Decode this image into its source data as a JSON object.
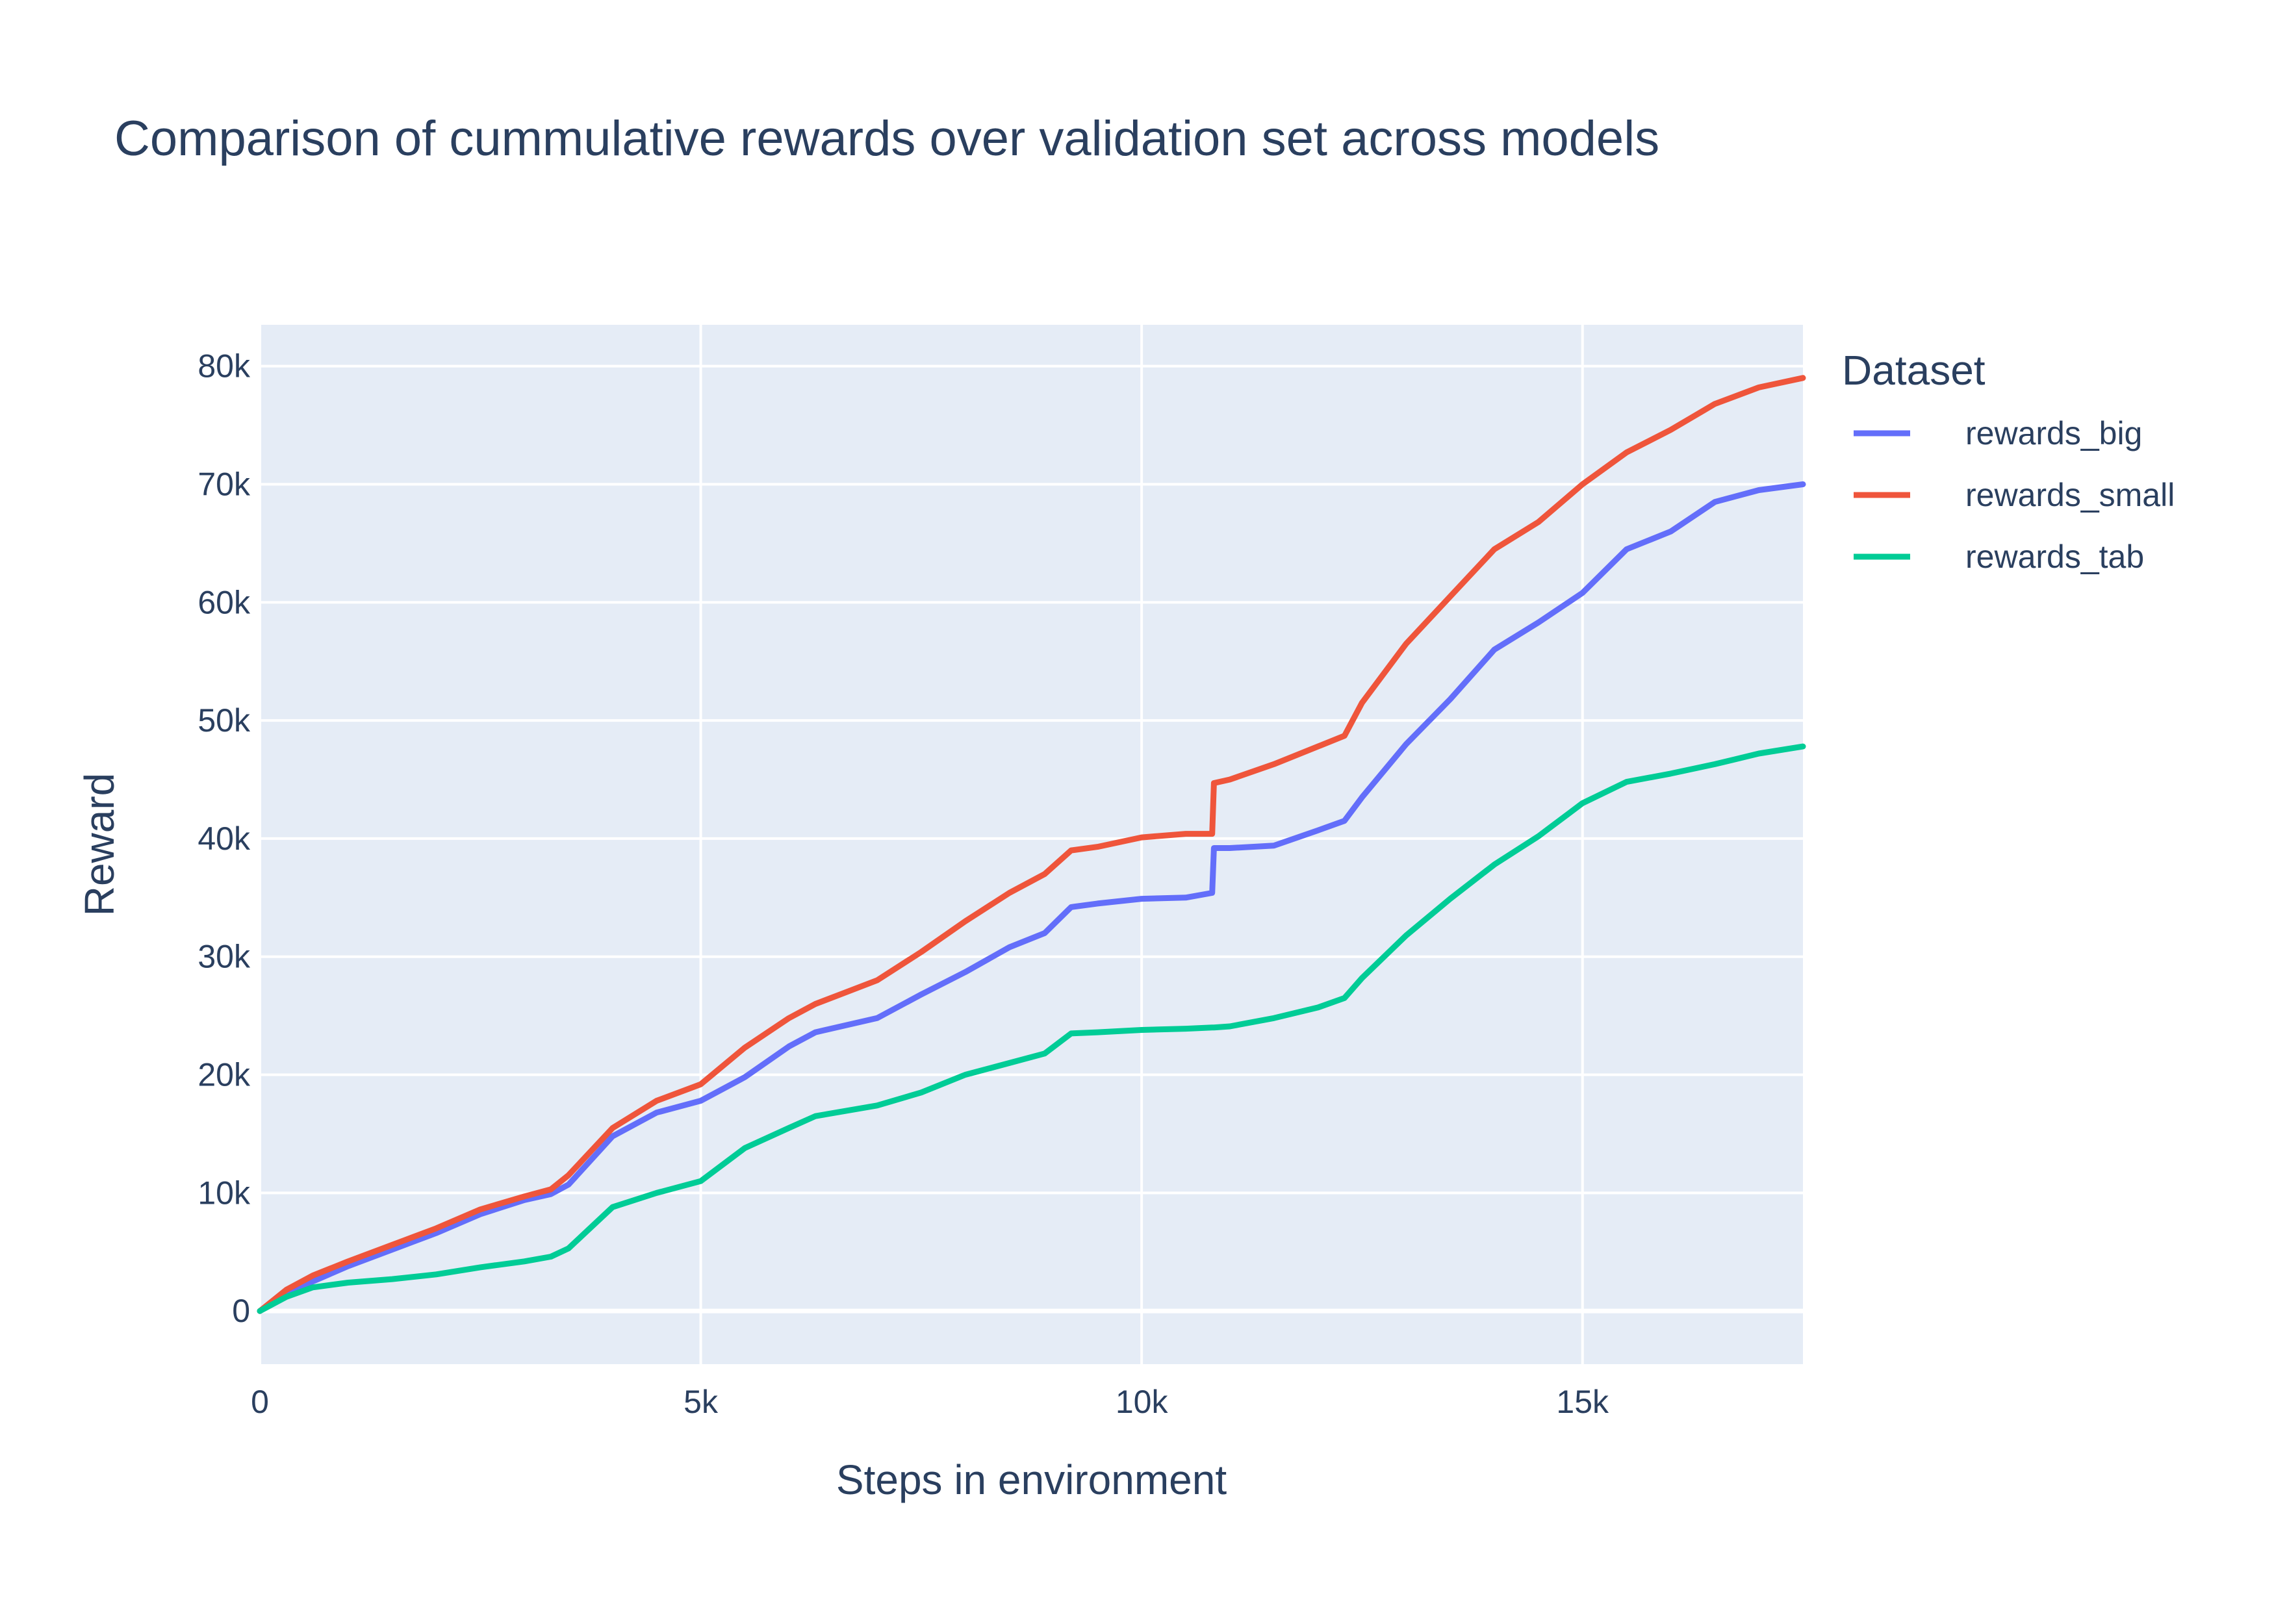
{
  "chart_data": {
    "type": "line",
    "title": "Comparison of cummulative rewards over validation set across models",
    "xlabel": "Steps in environment",
    "ylabel": "Reward",
    "xlim": [
      0,
      17500
    ],
    "ylim": [
      -4500,
      83500
    ],
    "x_ticks": [
      0,
      5000,
      10000,
      15000
    ],
    "x_tick_labels": [
      "0",
      "5k",
      "10k",
      "15k"
    ],
    "y_ticks": [
      0,
      10000,
      20000,
      30000,
      40000,
      50000,
      60000,
      70000,
      80000
    ],
    "y_tick_labels": [
      "0",
      "10k",
      "20k",
      "30k",
      "40k",
      "50k",
      "60k",
      "70k",
      "80k"
    ],
    "grid": true,
    "legend": {
      "title": "Dataset",
      "position": "right"
    },
    "plot_bgcolor": "#E5ECF6",
    "series": [
      {
        "name": "rewards_big",
        "color": "#636EFA",
        "x": [
          0,
          300,
          600,
          1000,
          1500,
          2000,
          2500,
          3000,
          3300,
          3500,
          4000,
          4500,
          5000,
          5500,
          6000,
          6300,
          7000,
          7500,
          8000,
          8500,
          8900,
          9200,
          9500,
          10000,
          10500,
          10800,
          10820,
          11000,
          11500,
          12000,
          12300,
          12500,
          13000,
          13500,
          14000,
          14500,
          15000,
          15500,
          16000,
          16500,
          17000,
          17500
        ],
        "y": [
          0,
          1500,
          2500,
          3800,
          5200,
          6600,
          8200,
          9400,
          9900,
          10700,
          14800,
          16800,
          17800,
          19800,
          22400,
          23600,
          24800,
          26800,
          28700,
          30800,
          32000,
          34200,
          34500,
          34900,
          35000,
          35400,
          39200,
          39200,
          39400,
          40700,
          41500,
          43500,
          48000,
          51800,
          56000,
          58300,
          60800,
          64500,
          66000,
          68500,
          69500,
          70000
        ]
      },
      {
        "name": "rewards_small",
        "color": "#EF553B",
        "x": [
          0,
          300,
          600,
          1000,
          1500,
          2000,
          2500,
          3000,
          3300,
          3500,
          4000,
          4500,
          5000,
          5500,
          6000,
          6300,
          7000,
          7500,
          8000,
          8500,
          8900,
          9200,
          9500,
          10000,
          10500,
          10800,
          10820,
          11000,
          11500,
          12000,
          12300,
          12500,
          13000,
          13500,
          14000,
          14500,
          15000,
          15500,
          16000,
          16500,
          17000,
          17500
        ],
        "y": [
          0,
          1800,
          3000,
          4200,
          5600,
          7000,
          8600,
          9700,
          10300,
          11500,
          15500,
          17800,
          19200,
          22300,
          24800,
          26000,
          28000,
          30400,
          33000,
          35400,
          37000,
          39000,
          39300,
          40100,
          40400,
          40400,
          44700,
          45000,
          46300,
          47800,
          48700,
          51500,
          56500,
          60500,
          64500,
          66800,
          70000,
          72700,
          74600,
          76800,
          78200,
          79000
        ]
      },
      {
        "name": "rewards_tab",
        "color": "#00CC96",
        "x": [
          0,
          300,
          600,
          1000,
          1500,
          2000,
          2500,
          3000,
          3300,
          3500,
          4000,
          4500,
          5000,
          5500,
          6000,
          6300,
          7000,
          7500,
          8000,
          8500,
          8900,
          9200,
          9500,
          10000,
          10500,
          10800,
          10820,
          11000,
          11500,
          12000,
          12300,
          12500,
          13000,
          13500,
          14000,
          14500,
          15000,
          15500,
          16000,
          16500,
          17000,
          17500
        ],
        "y": [
          0,
          1200,
          2000,
          2400,
          2700,
          3100,
          3700,
          4200,
          4600,
          5300,
          8800,
          10000,
          11000,
          13800,
          15500,
          16500,
          17400,
          18500,
          20000,
          21000,
          21800,
          23500,
          23600,
          23800,
          23900,
          24000,
          24000,
          24100,
          24800,
          25700,
          26500,
          28200,
          31800,
          34900,
          37800,
          40200,
          43000,
          44800,
          45500,
          46300,
          47200,
          47800
        ]
      }
    ]
  }
}
